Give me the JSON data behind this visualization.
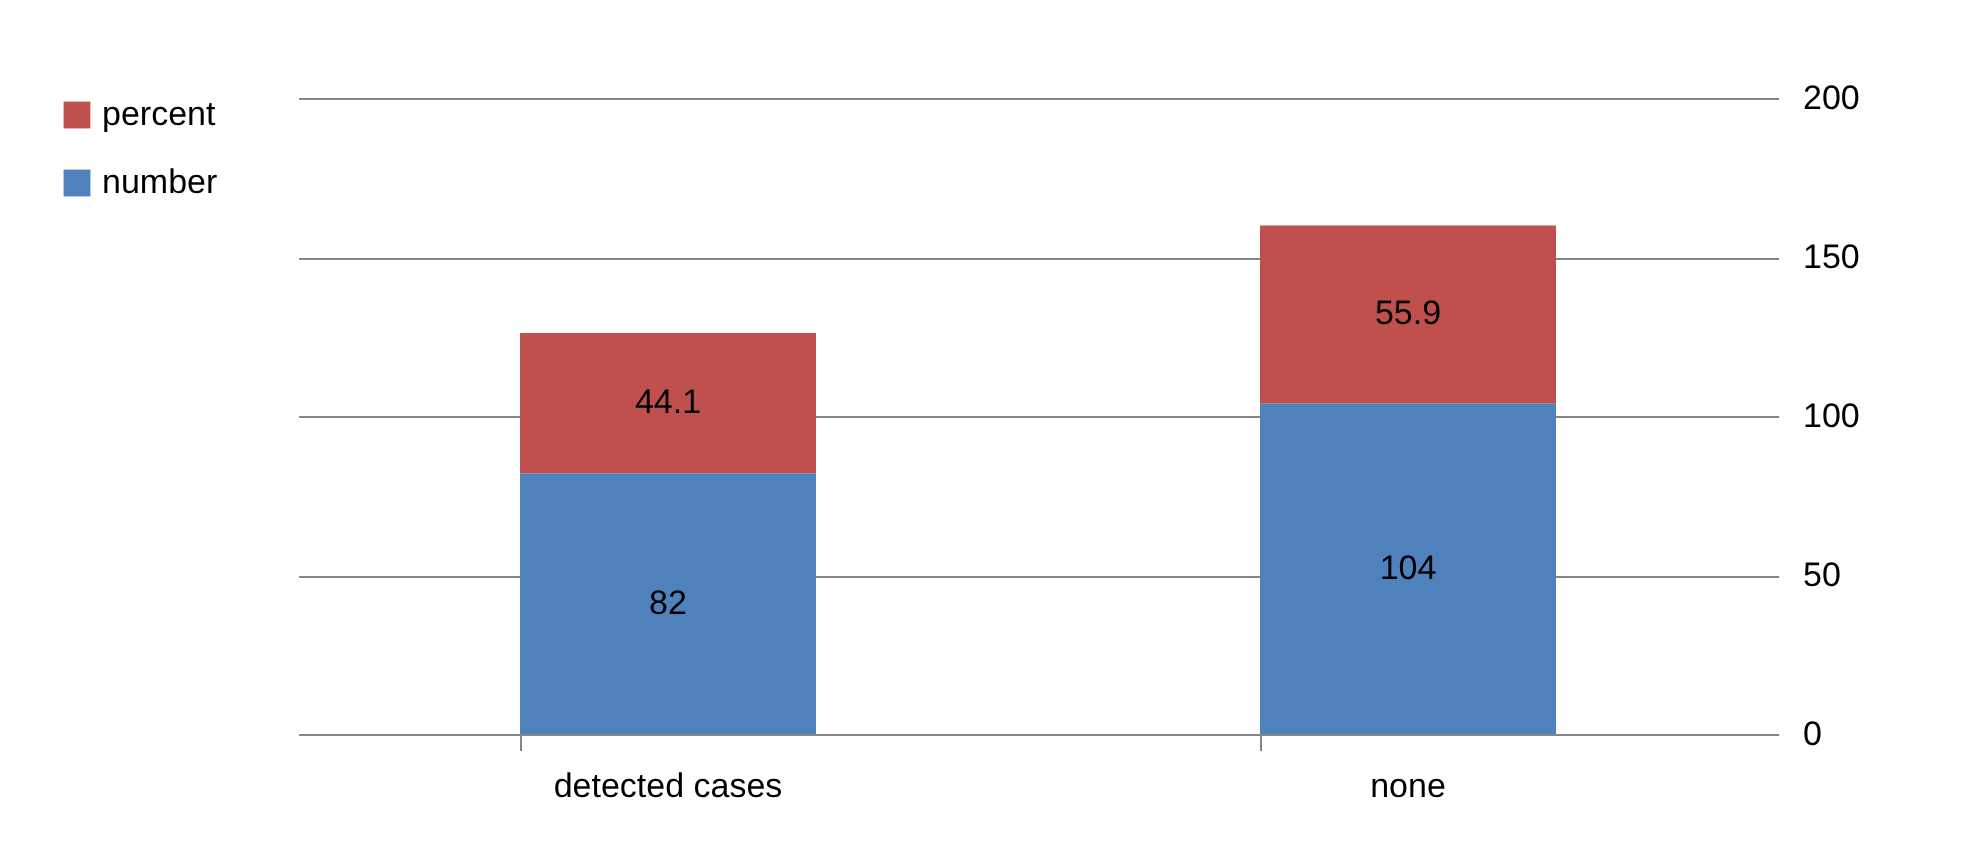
{
  "chart_data": {
    "type": "bar",
    "stacked": true,
    "categories": [
      "detected cases",
      "none"
    ],
    "series": [
      {
        "name": "number",
        "color": "#4f81bd",
        "values": [
          82,
          104
        ]
      },
      {
        "name": "percent",
        "color": "#c0504d",
        "values": [
          44.1,
          55.9
        ]
      }
    ],
    "ylim": [
      0,
      200
    ],
    "yticks": [
      0,
      50,
      100,
      150,
      200
    ],
    "grid": "y",
    "legend": "left",
    "data_labels": true
  }
}
